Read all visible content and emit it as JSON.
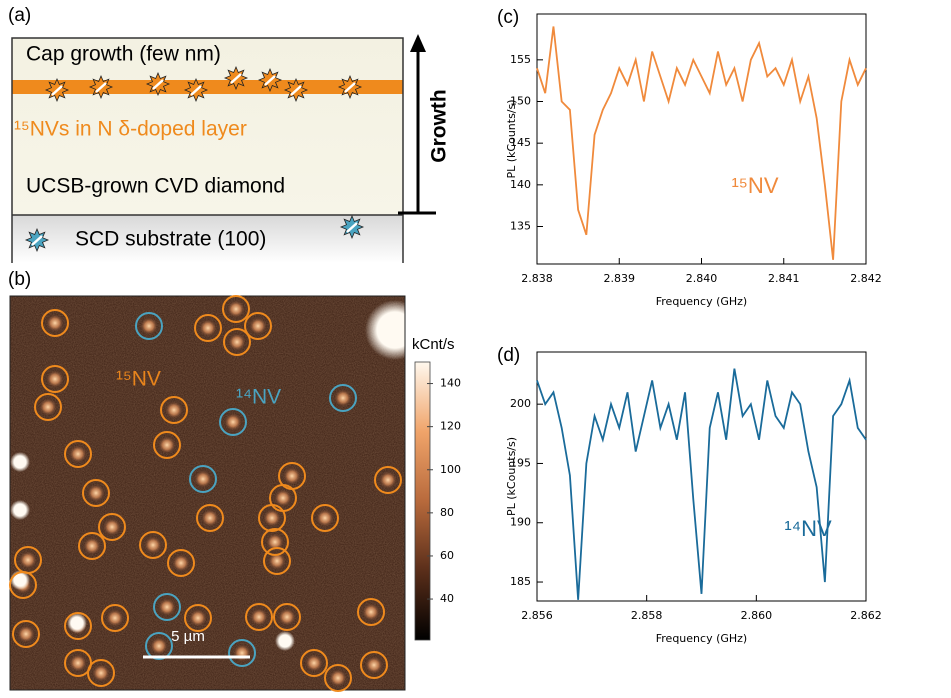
{
  "panel_a": {
    "label": "(a)",
    "cap": "Cap growth (few nm)",
    "layer": "¹⁵NVs in N δ-doped layer",
    "diamond": "UCSB-grown CVD diamond",
    "substrate": "SCD substrate (100)",
    "growth": "Growth"
  },
  "panel_b": {
    "label": "(b)",
    "colorbar_label": "kCnt/s",
    "colorbar_lim": [
      21,
      150
    ],
    "colorbar_ticks": [
      40,
      60,
      80,
      100,
      120,
      140
    ],
    "label_15": "¹⁵NV",
    "label_14": "¹⁴NV",
    "scale_bar": "5 µm"
  },
  "chart_data": [
    {
      "type": "line",
      "panel_label": "(c)",
      "xlabel": "Frequency (GHz)",
      "ylabel": "PL (kCounts/s)",
      "annotation": "¹⁵NV",
      "color": "#f08a3c",
      "x": [
        2.838,
        2.8381,
        2.8382,
        2.8383,
        2.8384,
        2.8385,
        2.8386,
        2.8387,
        2.8388,
        2.8389,
        2.839,
        2.8391,
        2.8392,
        2.8393,
        2.8394,
        2.8395,
        2.8396,
        2.8397,
        2.8398,
        2.8399,
        2.84,
        2.8401,
        2.8402,
        2.8403,
        2.8404,
        2.8405,
        2.8406,
        2.8407,
        2.8408,
        2.8409,
        2.841,
        2.8411,
        2.8412,
        2.8413,
        2.8414,
        2.8415,
        2.8416,
        2.8417,
        2.8418,
        2.8419,
        2.842
      ],
      "values": [
        154,
        151,
        159,
        150,
        149,
        137,
        134,
        146,
        149,
        151,
        154,
        152,
        155,
        150,
        156,
        153,
        150,
        154,
        152,
        155,
        153,
        151,
        156,
        152,
        154,
        150,
        155,
        157,
        153,
        154,
        152,
        155,
        150,
        153,
        148,
        140,
        131,
        150,
        155,
        152,
        154
      ],
      "xlim": [
        2.838,
        2.842
      ],
      "ylim": [
        130.5,
        160.5
      ],
      "xticks": [
        2.838,
        2.839,
        {
          "value": 2.84,
          "label": "2.840"
        },
        2.841,
        2.842
      ],
      "yticks": [
        135,
        140,
        145,
        150,
        155
      ]
    },
    {
      "type": "line",
      "panel_label": "(d)",
      "xlabel": "Frequency (GHz)",
      "ylabel": "PL (kCounts/s)",
      "annotation": "¹⁴NV",
      "color": "#1a6b9a",
      "x": [
        2.856,
        2.85615,
        2.8563,
        2.85645,
        2.8566,
        2.85675,
        2.8569,
        2.85705,
        2.8572,
        2.85735,
        2.8575,
        2.85765,
        2.8578,
        2.85795,
        2.8581,
        2.85825,
        2.8584,
        2.85855,
        2.8587,
        2.85885,
        2.859,
        2.85915,
        2.8593,
        2.85945,
        2.8596,
        2.85975,
        2.8599,
        2.86005,
        2.8602,
        2.86035,
        2.8605,
        2.86065,
        2.8608,
        2.86095,
        2.8611,
        2.86125,
        2.8614,
        2.86155,
        2.8617,
        2.86185,
        2.862
      ],
      "values": [
        202,
        200,
        201,
        198,
        194,
        183.5,
        195,
        199,
        197,
        200,
        198,
        201,
        196,
        199,
        202,
        198,
        200,
        197,
        201,
        192,
        184,
        198,
        201,
        197,
        203,
        199,
        200,
        197,
        202,
        199,
        198,
        201,
        200,
        196,
        193,
        185,
        199,
        200,
        202,
        198,
        197
      ],
      "xlim": [
        2.856,
        2.862
      ],
      "ylim": [
        183.4,
        204.4
      ],
      "xticks": [
        2.856,
        2.858,
        {
          "value": 2.86,
          "label": "2.860"
        },
        2.862
      ],
      "yticks": [
        185,
        190,
        195,
        200
      ]
    }
  ]
}
